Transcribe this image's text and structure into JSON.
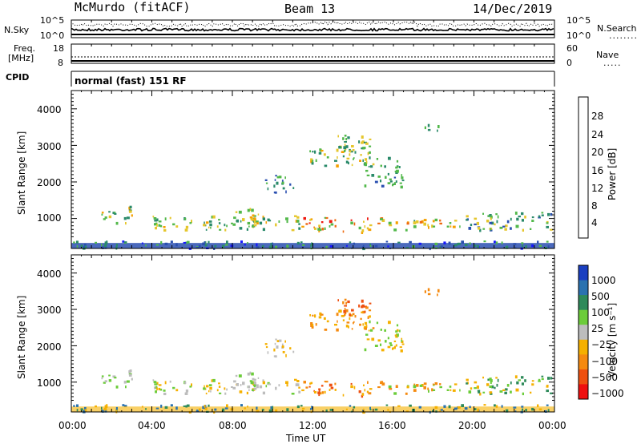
{
  "header": {
    "station": "McMurdo (fitACF)",
    "beam": "Beam 13",
    "date": "14/Dec/2019"
  },
  "params_panel": {
    "nsky_label": "N.Sky",
    "nsky_ticks": [
      "10^5",
      "10^0"
    ],
    "nsearch_label": "N.Search",
    "nsearch_ticks": [
      "10^5",
      "10^0"
    ],
    "freq_label_line1": "Freq.",
    "freq_label_line2": "[MHz]",
    "freq_ticks": [
      "18",
      "8"
    ],
    "nave_label": "Nave",
    "nave_ticks": [
      "60",
      "0"
    ],
    "cpid_label": "CPID",
    "cpid_value": "normal (fast) 151 RF"
  },
  "chart_data": [
    {
      "type": "heatmap",
      "title": "",
      "ylabel": "Slant Range [km]",
      "xlabel": "",
      "yticks": [
        "1000",
        "2000",
        "3000",
        "4000"
      ],
      "ylim": [
        180,
        4500
      ],
      "colorbar": {
        "label": "Power [dB]",
        "ticks": [
          "4",
          "8",
          "12",
          "16",
          "20",
          "24",
          "28"
        ],
        "range": [
          0,
          30
        ],
        "colors": [
          "#1515ff",
          "#2a4fb0",
          "#2a8a6a",
          "#52b84a",
          "#e5c62c",
          "#f5a000",
          "#ee6a10",
          "#ee1a10"
        ]
      }
    },
    {
      "type": "heatmap",
      "title": "",
      "ylabel": "Slant Range [km]",
      "xlabel": "Time UT",
      "yticks": [
        "1000",
        "2000",
        "3000",
        "4000"
      ],
      "ylim": [
        180,
        4500
      ],
      "xticks": [
        "00:00",
        "04:00",
        "08:00",
        "12:00",
        "16:00",
        "20:00",
        "00:00"
      ],
      "xlim_hours": [
        0,
        24
      ],
      "colorbar": {
        "label": "Velocity [m s⁻¹]",
        "ticks": [
          "1000",
          "500",
          "100",
          "25",
          "−25",
          "−100",
          "−500",
          "−1000"
        ],
        "colors": [
          "#1a3fc0",
          "#2a72b0",
          "#2e8a5a",
          "#6ccc3a",
          "#bdbdbd",
          "#f5b000",
          "#f58a10",
          "#ee5010",
          "#ee1010"
        ]
      }
    }
  ]
}
